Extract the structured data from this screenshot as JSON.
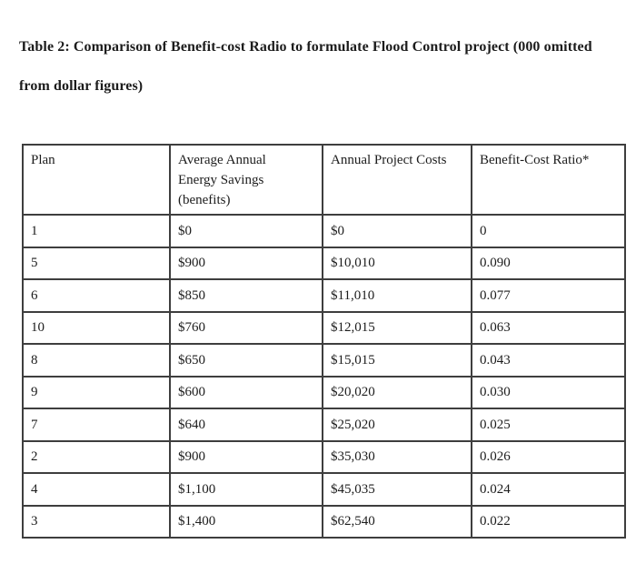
{
  "caption": {
    "line1": "Table 2: Comparison of Benefit-cost Radio to formulate Flood Control project (000 omitted",
    "line2": "from dollar figures)"
  },
  "table": {
    "columns": [
      {
        "label": "Plan"
      },
      {
        "label": "Average Annual\nEnergy Savings\n(benefits)"
      },
      {
        "label": "Annual Project Costs"
      },
      {
        "label": "Benefit-Cost Ratio*"
      }
    ],
    "rows": [
      [
        "1",
        "$0",
        "$0",
        "0"
      ],
      [
        "5",
        "$900",
        "$10,010",
        "0.090"
      ],
      [
        "6",
        "$850",
        "$11,010",
        "0.077"
      ],
      [
        "10",
        "$760",
        "$12,015",
        "0.063"
      ],
      [
        "8",
        "$650",
        "$15,015",
        "0.043"
      ],
      [
        "9",
        "$600",
        "$20,020",
        "0.030"
      ],
      [
        "7",
        "$640",
        "$25,020",
        "0.025"
      ],
      [
        "2",
        "$900",
        "$35,030",
        "0.026"
      ],
      [
        "4",
        "$1,100",
        "$45,035",
        "0.024"
      ],
      [
        "3",
        "$1,400",
        "$62,540",
        "0.022"
      ]
    ]
  },
  "colors": {
    "text": "#1c1c1c",
    "table_border": "#3e3e3e",
    "background": "#ffffff"
  }
}
